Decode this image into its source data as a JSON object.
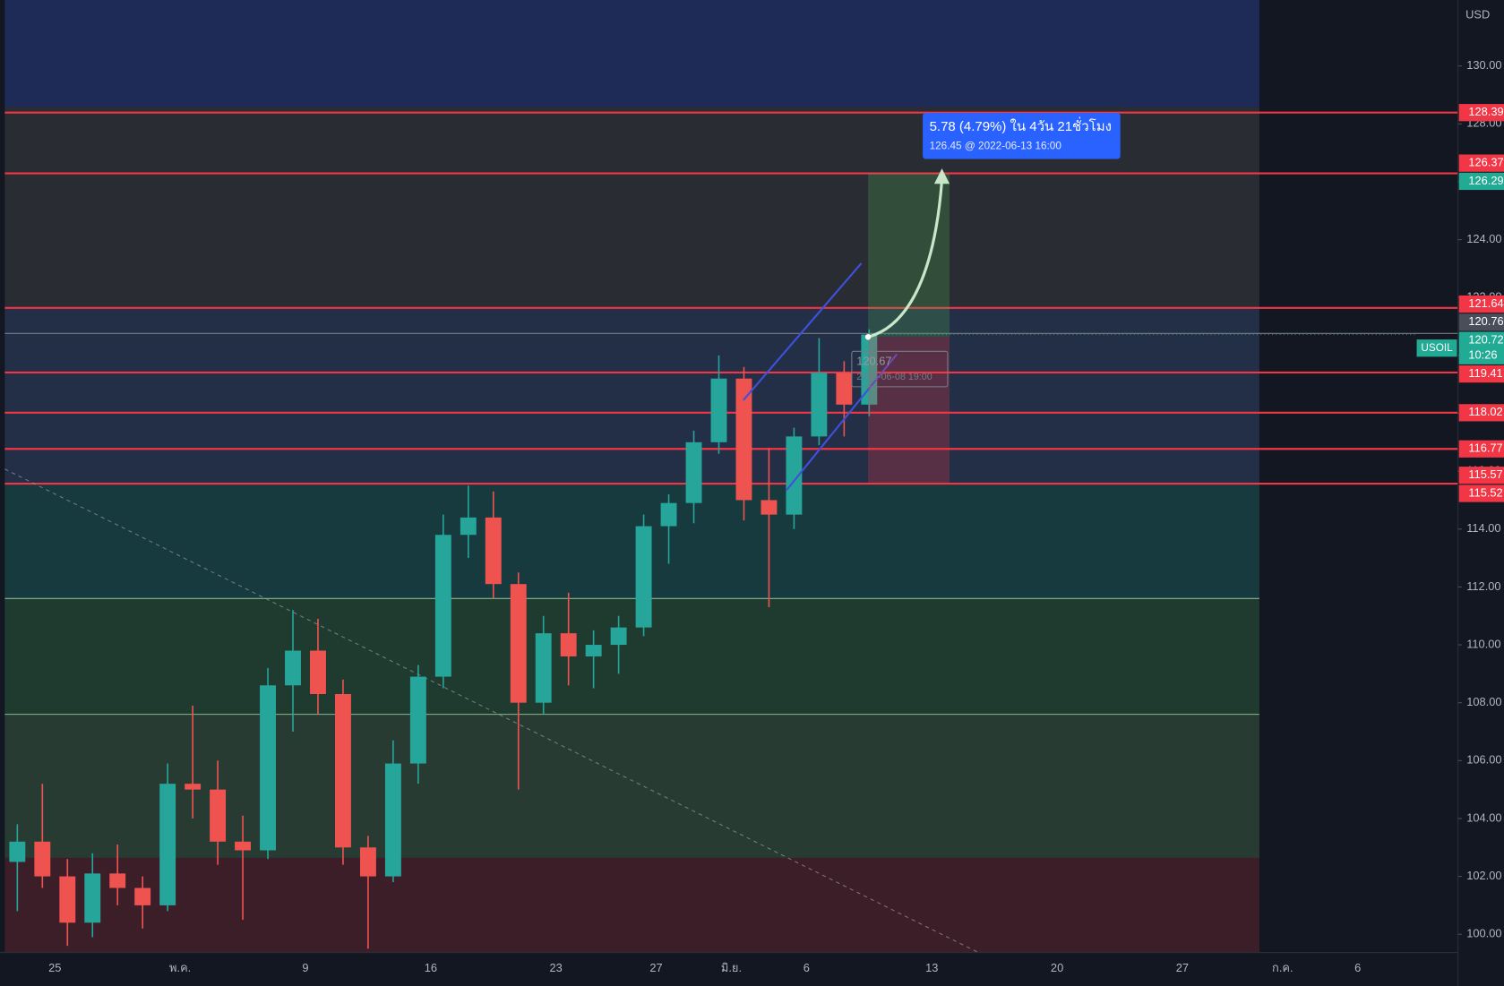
{
  "chart_data": {
    "type": "candlestick",
    "symbol": "USOIL",
    "currency": "USD",
    "countdown": "10:26",
    "categories": [
      null,
      null,
      "25",
      null,
      null,
      null,
      null,
      "พ.ค.",
      null,
      null,
      null,
      null,
      "9",
      null,
      null,
      null,
      null,
      "16",
      null,
      null,
      null,
      null,
      "23",
      null,
      null,
      null,
      "27",
      null,
      null,
      "มิ.ย.",
      null,
      null,
      "6",
      null,
      null,
      null,
      null,
      "13",
      null,
      null,
      null,
      null,
      "20",
      null,
      null,
      null,
      null,
      "27",
      null,
      null,
      null,
      "ก.ค.",
      null,
      null,
      "6",
      null,
      null,
      null
    ],
    "open": [
      102.5,
      103.2,
      102.0,
      100.4,
      102.1,
      101.6,
      101.0,
      105.2,
      105.0,
      103.2,
      102.9,
      108.6,
      109.8,
      108.3,
      103.0,
      102.0,
      105.9,
      108.9,
      113.8,
      114.4,
      112.1,
      108.0,
      110.4,
      109.6,
      110.0,
      110.6,
      114.1,
      114.9,
      117.0,
      119.2,
      115.0,
      114.5,
      117.2,
      119.4,
      118.3,
      null,
      null,
      null,
      null,
      null,
      null,
      null,
      null,
      null,
      null,
      null,
      null,
      null,
      null,
      null,
      null,
      null,
      null,
      null,
      null,
      null,
      null,
      null
    ],
    "high": [
      103.8,
      105.2,
      102.6,
      102.8,
      103.1,
      102.0,
      105.9,
      107.9,
      106.0,
      104.1,
      109.2,
      111.2,
      110.9,
      108.8,
      103.4,
      106.7,
      109.3,
      114.5,
      115.5,
      115.3,
      112.5,
      111.0,
      111.8,
      110.5,
      111.0,
      114.5,
      115.2,
      117.4,
      120.0,
      119.6,
      116.8,
      117.5,
      120.6,
      119.8,
      120.9,
      null,
      null,
      null,
      null,
      null,
      null,
      null,
      null,
      null,
      null,
      null,
      null,
      null,
      null,
      null,
      null,
      null,
      null,
      null,
      null,
      null,
      null,
      null
    ],
    "low": [
      100.8,
      101.6,
      99.6,
      99.9,
      101.0,
      100.2,
      100.8,
      104.0,
      102.4,
      100.5,
      102.6,
      107.0,
      107.6,
      102.4,
      99.5,
      101.8,
      105.2,
      108.5,
      113.0,
      111.6,
      105.0,
      107.6,
      108.6,
      108.5,
      109.0,
      110.3,
      112.8,
      114.2,
      116.6,
      114.3,
      111.3,
      114.0,
      116.9,
      117.2,
      117.9,
      null,
      null,
      null,
      null,
      null,
      null,
      null,
      null,
      null,
      null,
      null,
      null,
      null,
      null,
      null,
      null,
      null,
      null,
      null,
      null,
      null,
      null,
      null
    ],
    "close": [
      103.2,
      102.0,
      100.4,
      102.1,
      101.6,
      101.0,
      105.2,
      105.0,
      103.2,
      102.9,
      108.6,
      109.8,
      108.3,
      103.0,
      102.0,
      105.9,
      108.9,
      113.8,
      114.4,
      112.1,
      108.0,
      110.4,
      109.6,
      110.0,
      110.6,
      114.1,
      114.9,
      117.0,
      119.2,
      115.0,
      114.5,
      117.2,
      119.4,
      118.3,
      120.72,
      null,
      null,
      null,
      null,
      null,
      null,
      null,
      null,
      null,
      null,
      null,
      null,
      null,
      null,
      null,
      null,
      null,
      null,
      null,
      null,
      null,
      null,
      null
    ],
    "up_color": "#26a69a",
    "down_color": "#ef5350",
    "last_color": "#22ab94",
    "ylim": [
      99.37,
      132.28
    ],
    "yticks": [
      {
        "value": 100,
        "label": "100.00"
      },
      {
        "value": 102,
        "label": "102.00"
      },
      {
        "value": 104,
        "label": "104.00"
      },
      {
        "value": 106,
        "label": "106.00"
      },
      {
        "value": 108,
        "label": "108.00"
      },
      {
        "value": 110,
        "label": "110.00"
      },
      {
        "value": 112,
        "label": "112.00"
      },
      {
        "value": 114,
        "label": "114.00"
      },
      {
        "value": 116,
        "label": "116.00"
      },
      {
        "value": 118,
        "label": "118.00"
      },
      {
        "value": 120,
        "label": "120.00"
      },
      {
        "value": 122,
        "label": "122.00"
      },
      {
        "value": 124,
        "label": "124.00"
      },
      {
        "value": 126,
        "label": "126.00"
      },
      {
        "value": 128,
        "label": "128.00"
      },
      {
        "value": 130,
        "label": "130.00"
      }
    ],
    "zones": [
      {
        "from": 132.28,
        "to": 128.58,
        "color": "#1f2b57"
      },
      {
        "from": 128.58,
        "to": 121.64,
        "color": "#2a2c33"
      },
      {
        "from": 121.64,
        "to": 115.57,
        "color": "#232e47"
      },
      {
        "from": 115.57,
        "to": 111.6,
        "color": "#173a3e"
      },
      {
        "from": 111.6,
        "to": 107.6,
        "color": "#1f3b30",
        "edge": "#a5d6a7"
      },
      {
        "from": 107.6,
        "to": 102.64,
        "color": "#283b33",
        "edge": "#a5d6a7"
      },
      {
        "from": 102.64,
        "to": 99.37,
        "color": "#3b1e28"
      }
    ],
    "levels": [
      {
        "value": 128.39,
        "color": "#f23645",
        "line": "#f23645"
      },
      {
        "value": 126.37,
        "color": "#f23645"
      },
      {
        "value": 126.29,
        "color": "#22ab94",
        "line": "#f23645"
      },
      {
        "value": 121.64,
        "color": "#f23645",
        "line": "#f23645"
      },
      {
        "value": 120.76,
        "color": "#4a4e5a",
        "line": "#787b86"
      },
      {
        "value": 119.41,
        "color": "#f23645",
        "line": "#f23645"
      },
      {
        "value": 118.02,
        "color": "#f23645",
        "line": "#f23645"
      },
      {
        "value": 116.77,
        "color": "#f23645",
        "line": "#f23645"
      },
      {
        "value": 115.57,
        "color": "#f23645",
        "line": "#f23645"
      },
      {
        "value": 115.52,
        "color": "#f23645"
      }
    ],
    "annotations": [
      {
        "text": "5.78 (4.79%) ใน 4วัน 21ชั่วโมง",
        "detail": "126.45 @ 2022-06-13 16:00"
      },
      {
        "text": "120.67",
        "detail": "2022-06-08 19:00"
      }
    ]
  }
}
